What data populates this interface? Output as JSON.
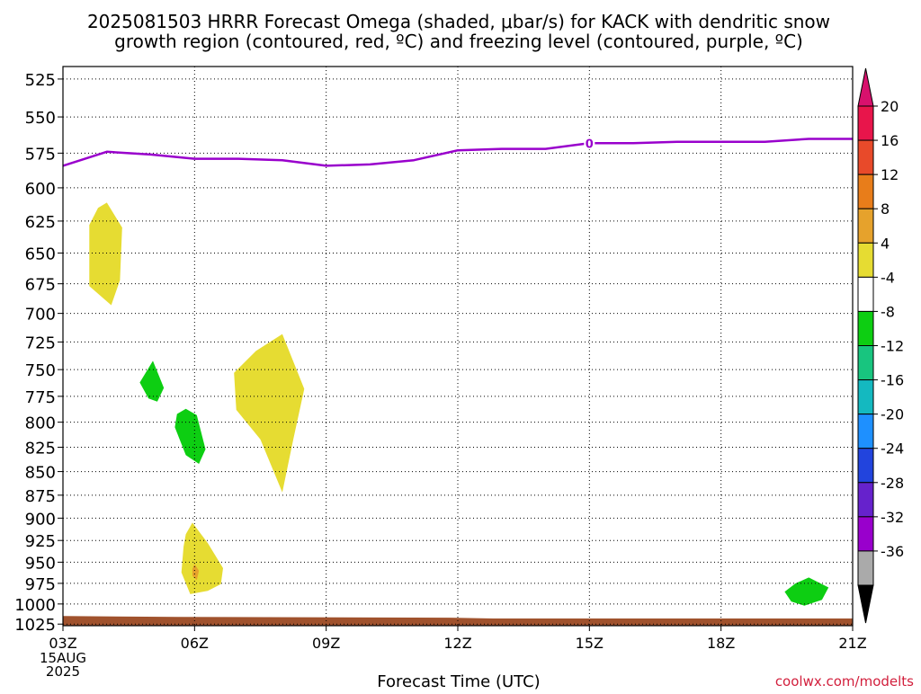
{
  "chart_data": {
    "type": "contour",
    "title_line1": "2025081503 HRRR Forecast Omega (shaded, μbar/s) for KACK with dendritic snow",
    "title_line2": "growth region (contoured, red, ºC) and freezing level (contoured, purple, ºC)",
    "xlabel": "Forecast Time (UTC)",
    "credit": "coolwx.com/modelts",
    "x_ticks": [
      "03Z",
      "06Z",
      "09Z",
      "12Z",
      "15Z",
      "18Z",
      "21Z"
    ],
    "x_tick_hours": [
      3,
      6,
      9,
      12,
      15,
      18,
      21
    ],
    "x_date_label": [
      "15AUG",
      "2025"
    ],
    "xlim_hours": [
      3,
      21
    ],
    "y_ticks": [
      525,
      550,
      575,
      600,
      625,
      650,
      675,
      700,
      725,
      750,
      775,
      800,
      825,
      850,
      875,
      900,
      925,
      950,
      975,
      1000,
      1025
    ],
    "ylim_hpa": [
      1027,
      517
    ],
    "y_scale": "log-pressure",
    "grid": true,
    "freezing_level": {
      "label": "0",
      "color": "#9900cc",
      "hours": [
        3,
        4,
        5,
        6,
        7,
        8,
        9,
        10,
        11,
        12,
        13,
        14,
        15,
        16,
        17,
        18,
        19,
        20,
        21
      ],
      "pressure_hpa": [
        584,
        574,
        576,
        579,
        579,
        580,
        584,
        583,
        580,
        573,
        572,
        572,
        568,
        568,
        567,
        567,
        567,
        565,
        565
      ]
    },
    "omega_regions": [
      {
        "level": "4 to 8",
        "color": "#e6dc32",
        "points": [
          [
            4.0,
            611
          ],
          [
            4.35,
            630
          ],
          [
            4.3,
            672
          ],
          [
            4.1,
            693
          ],
          [
            3.6,
            677
          ],
          [
            3.6,
            628
          ],
          [
            3.8,
            615
          ]
        ]
      },
      {
        "level": "-8 to -4",
        "color": "#0dce12",
        "points": [
          [
            5.05,
            742
          ],
          [
            5.3,
            767
          ],
          [
            5.15,
            780
          ],
          [
            4.95,
            777
          ],
          [
            4.75,
            762
          ]
        ]
      },
      {
        "level": "-8 to -4",
        "color": "#0dce12",
        "points": [
          [
            5.8,
            787
          ],
          [
            6.05,
            793
          ],
          [
            6.25,
            827
          ],
          [
            6.1,
            842
          ],
          [
            5.8,
            833
          ],
          [
            5.55,
            805
          ],
          [
            5.6,
            792
          ]
        ]
      },
      {
        "level": "4 to 8",
        "color": "#e6dc32",
        "points": [
          [
            8.0,
            718
          ],
          [
            8.5,
            768
          ],
          [
            8.25,
            817
          ],
          [
            8.0,
            872
          ],
          [
            7.5,
            817
          ],
          [
            6.95,
            788
          ],
          [
            6.9,
            753
          ],
          [
            7.4,
            733
          ]
        ]
      },
      {
        "level": "4 to 8",
        "color": "#e6dc32",
        "points": [
          [
            5.95,
            905
          ],
          [
            6.3,
            928
          ],
          [
            6.65,
            957
          ],
          [
            6.6,
            976
          ],
          [
            6.3,
            984
          ],
          [
            5.9,
            988
          ],
          [
            5.7,
            962
          ],
          [
            5.75,
            932
          ],
          [
            5.8,
            918
          ]
        ]
      },
      {
        "level": "8 to 12",
        "color": "#e6a22c",
        "points": [
          [
            6.0,
            952
          ],
          [
            6.1,
            960
          ],
          [
            6.05,
            971
          ],
          [
            5.95,
            966
          ],
          [
            5.95,
            958
          ]
        ]
      },
      {
        "level": "-8 to -4",
        "color": "#0dce12",
        "points": [
          [
            20.0,
            968
          ],
          [
            20.45,
            980
          ],
          [
            20.3,
            995
          ],
          [
            19.9,
            1002
          ],
          [
            19.6,
            997
          ],
          [
            19.45,
            985
          ],
          [
            19.7,
            975
          ]
        ]
      }
    ],
    "terrain": {
      "color": "#a0522d",
      "hours": [
        3,
        5.6,
        11.8,
        12.8,
        21
      ],
      "pressure_hpa": [
        1015,
        1016,
        1017,
        1018,
        1018
      ]
    },
    "colorbar": {
      "labels": [
        "20",
        "16",
        "12",
        "8",
        "4",
        "-4",
        "-8",
        "-12",
        "-16",
        "-20",
        "-24",
        "-28",
        "-32",
        "-36"
      ],
      "colors": [
        "#e8154b",
        "#e84a2a",
        "#e87d1a",
        "#e6a22c",
        "#e6dc32",
        "#ffffff",
        "#0dce12",
        "#18c57f",
        "#14b9c0",
        "#1e90ff",
        "#2244dd",
        "#6622cc",
        "#9900cc",
        "#aaaaaa"
      ],
      "top_arrow_color": "#d8116d",
      "bottom_arrow_color": "#000000"
    }
  }
}
